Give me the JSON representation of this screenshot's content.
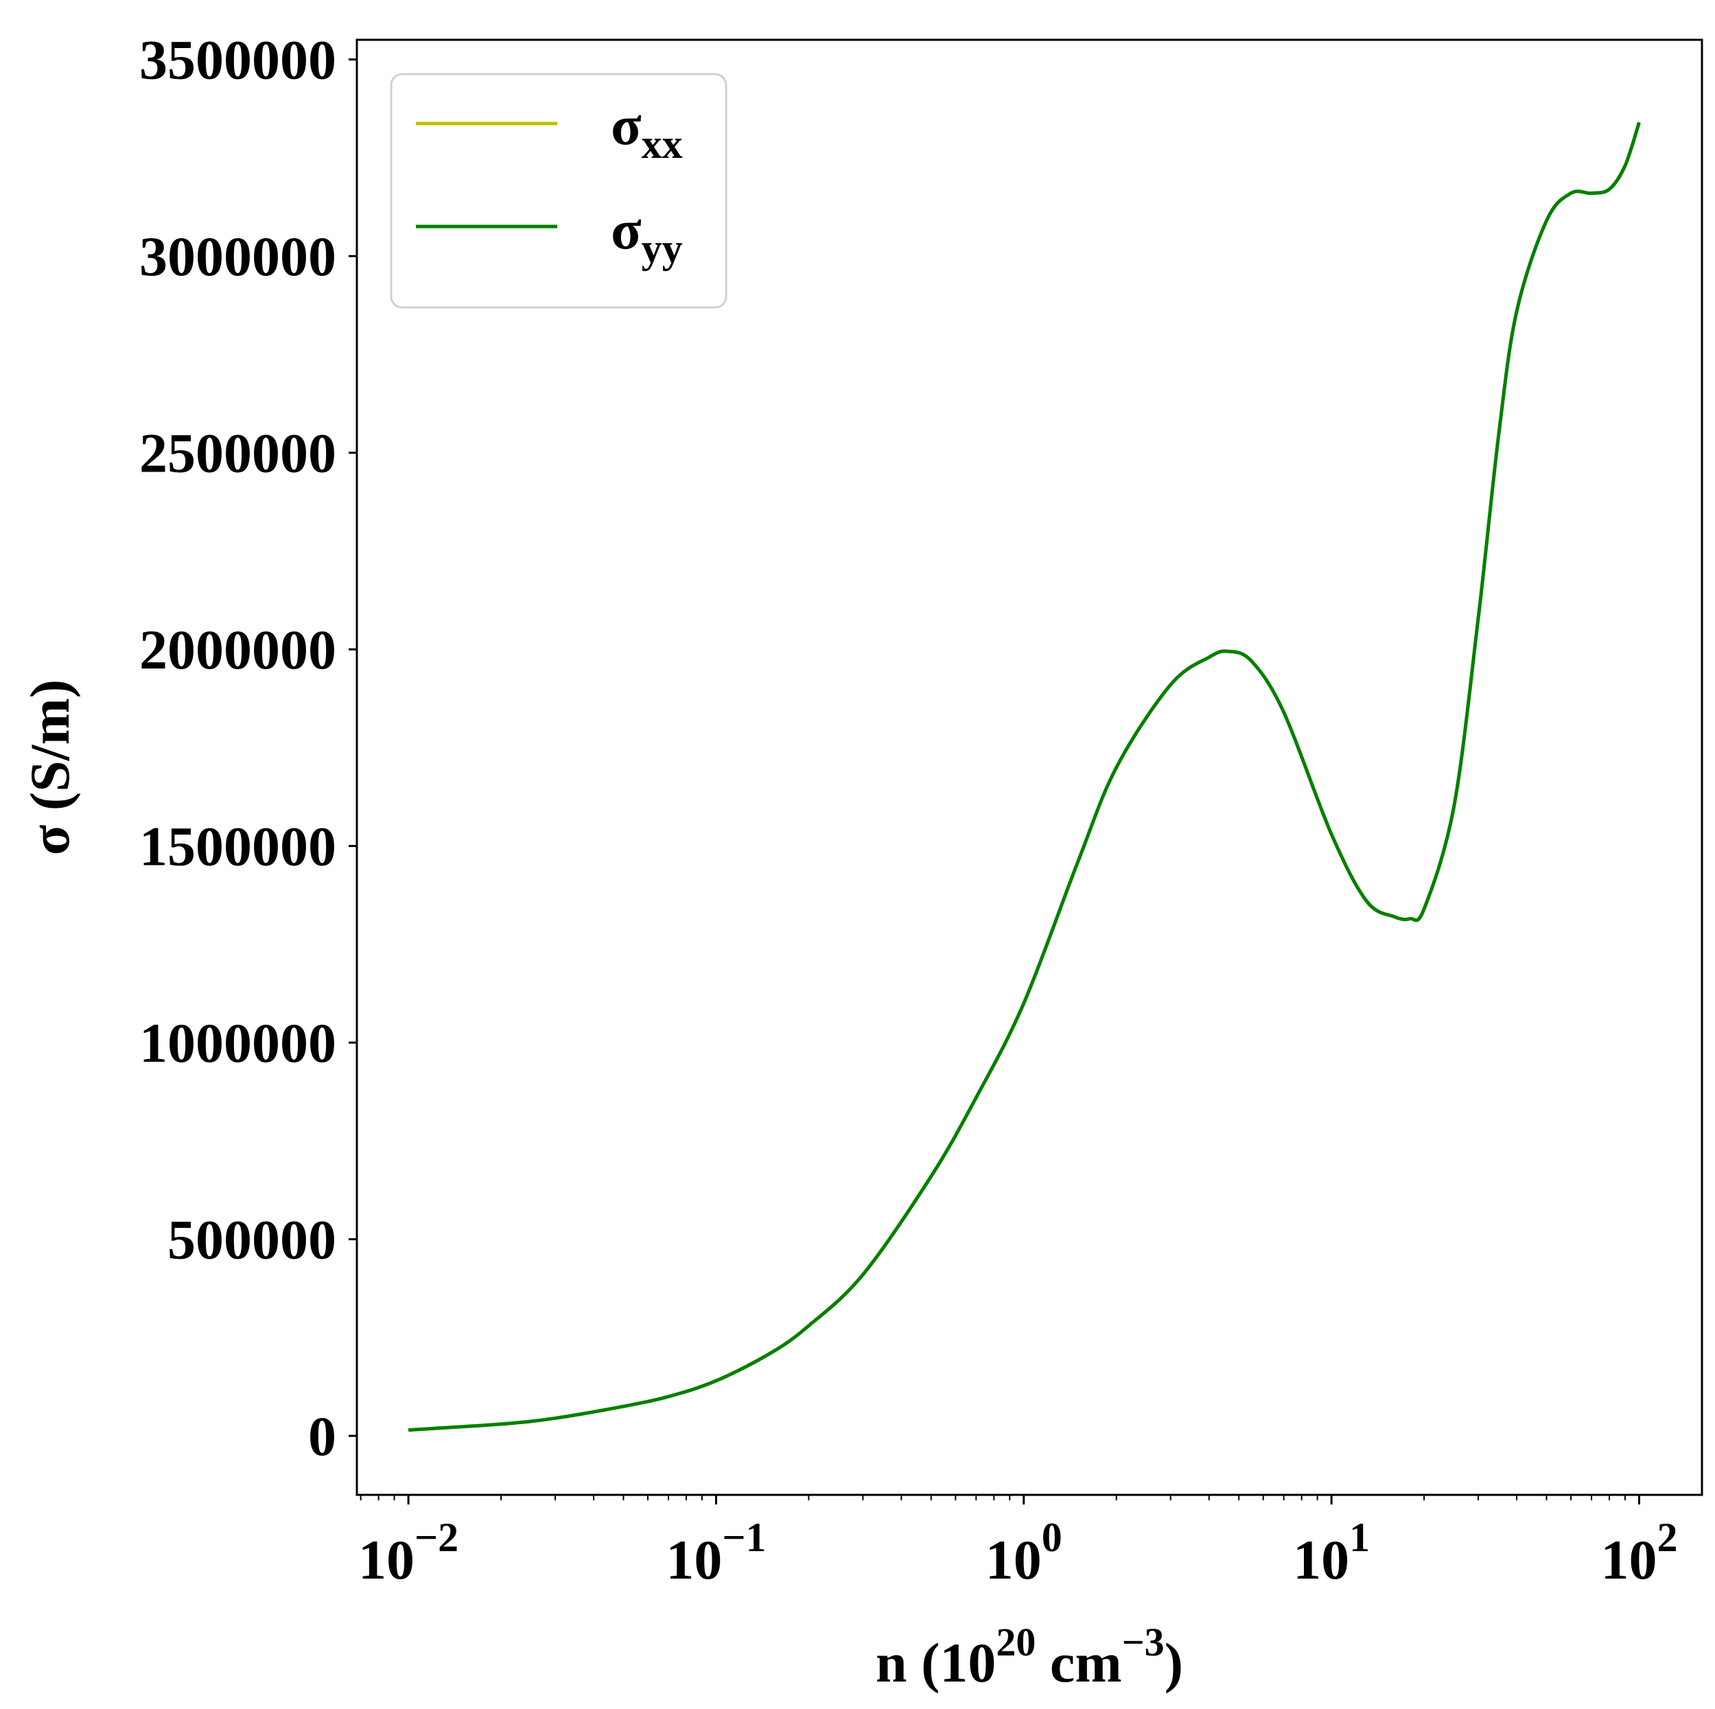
{
  "chart_data": {
    "type": "line",
    "xscale": "log",
    "xlim": [
      0.0068,
      160
    ],
    "ylim": [
      -150000,
      3550000
    ],
    "xlabel": {
      "base": "n (10",
      "sup1": "20",
      "mid": " cm",
      "sup2": "−3",
      "end": ")"
    },
    "ylabel": "σ (S/m)",
    "yticks": [
      0,
      500000,
      1000000,
      1500000,
      2000000,
      2500000,
      3000000,
      3500000
    ],
    "ytick_labels": [
      "0",
      "500000",
      "1000000",
      "1500000",
      "2000000",
      "2500000",
      "3000000",
      "3500000"
    ],
    "xticks": [
      0.01,
      0.1,
      1,
      10,
      100
    ],
    "xtick_labels": [
      {
        "base": "10",
        "exp": "−2"
      },
      {
        "base": "10",
        "exp": "−1"
      },
      {
        "base": "10",
        "exp": "0"
      },
      {
        "base": "10",
        "exp": "1"
      },
      {
        "base": "10",
        "exp": "2"
      }
    ],
    "grid": false,
    "legend_position": "top-left",
    "series": [
      {
        "name": {
          "base": "σ",
          "sub": "xx"
        },
        "color": "#bfbf00",
        "x": [
          0.01,
          0.02,
          0.03,
          0.05,
          0.07,
          0.1,
          0.15,
          0.2,
          0.3,
          0.5,
          0.7,
          1,
          1.5,
          2,
          3,
          4,
          4.6,
          5.5,
          7,
          10,
          13,
          16,
          18,
          20,
          25,
          30,
          35,
          40,
          50,
          60,
          70,
          80,
          90,
          100
        ],
        "y": [
          15000,
          30000,
          45000,
          75000,
          100000,
          140000,
          210000,
          280000,
          410000,
          660000,
          860000,
          1100000,
          1460000,
          1700000,
          1910000,
          1980000,
          1995000,
          1970000,
          1840000,
          1530000,
          1360000,
          1320000,
          1315000,
          1340000,
          1600000,
          2080000,
          2550000,
          2860000,
          3090000,
          3160000,
          3160000,
          3170000,
          3230000,
          3340000
        ]
      },
      {
        "name": {
          "base": "σ",
          "sub": "yy"
        },
        "color": "#008000",
        "x": [
          0.01,
          0.02,
          0.03,
          0.05,
          0.07,
          0.1,
          0.15,
          0.2,
          0.3,
          0.5,
          0.7,
          1,
          1.5,
          2,
          3,
          4,
          4.6,
          5.5,
          7,
          10,
          13,
          16,
          18,
          20,
          25,
          30,
          35,
          40,
          50,
          60,
          70,
          80,
          90,
          100
        ],
        "y": [
          15000,
          30000,
          45000,
          75000,
          100000,
          140000,
          210000,
          280000,
          410000,
          660000,
          860000,
          1100000,
          1460000,
          1700000,
          1910000,
          1980000,
          1995000,
          1970000,
          1840000,
          1530000,
          1360000,
          1320000,
          1315000,
          1340000,
          1600000,
          2080000,
          2550000,
          2860000,
          3090000,
          3160000,
          3160000,
          3170000,
          3230000,
          3340000
        ]
      }
    ]
  }
}
